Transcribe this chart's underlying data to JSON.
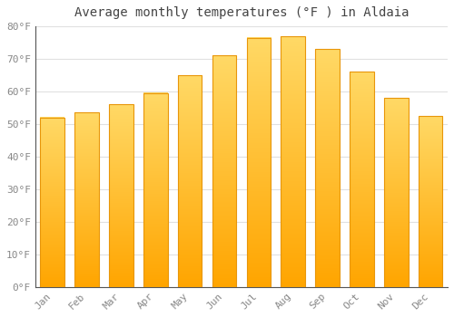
{
  "title": "Average monthly temperatures (°F ) in Aldaia",
  "months": [
    "Jan",
    "Feb",
    "Mar",
    "Apr",
    "May",
    "Jun",
    "Jul",
    "Aug",
    "Sep",
    "Oct",
    "Nov",
    "Dec"
  ],
  "values": [
    52,
    53.5,
    56,
    59.5,
    65,
    71,
    76.5,
    77,
    73,
    66,
    58,
    52.5
  ],
  "bar_color_face": "#FFC020",
  "bar_color_edge": "#E8960A",
  "bar_color_light": "#FFD966",
  "background_color": "#FFFFFF",
  "grid_color": "#E0E0E0",
  "title_color": "#444444",
  "tick_color": "#888888",
  "ylim": [
    0,
    80
  ],
  "yticks": [
    0,
    10,
    20,
    30,
    40,
    50,
    60,
    70,
    80
  ],
  "title_fontsize": 10,
  "tick_fontsize": 8,
  "figsize": [
    5.0,
    3.5
  ],
  "dpi": 100
}
